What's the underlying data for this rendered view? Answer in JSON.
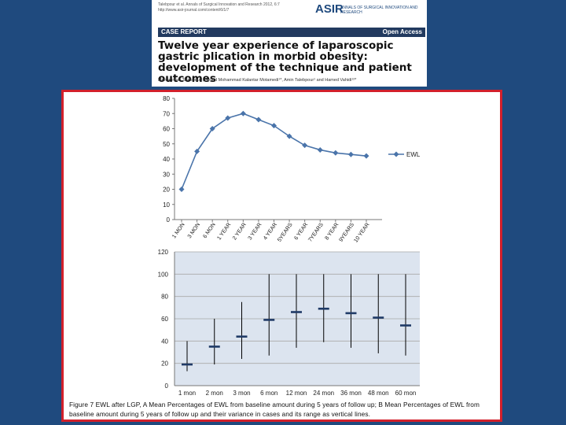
{
  "paper": {
    "citation": "Talebpour et al. Annals of Surgical Innovation and Research 2012, 6:7",
    "citation_url": "http://www.asir-journal.com/content/6/1/7",
    "logo_mark": "ASIR",
    "logo_text": "ANNALS OF SURGICAL INNOVATION AND RESEARCH",
    "banner_left": "CASE REPORT",
    "banner_right": "Open Access",
    "title": "Twelve year experience of laparoscopic gastric plication in morbid obesity: development of the technique and patient outcomes",
    "authors": "Mohammad Talebpour¹, Seyed Mohammad Kalantar Motamedi¹*, Amin Talebpour¹ and Hamed Vahidi¹²*"
  },
  "caption": "Figure 7 EWL after LGP, A Mean Percentages of EWL from baseline amount during 5 years of follow up; B Mean Percentages of EWL from baseline amount during 5 years of follow up and their variance in cases and its range as vertical lines.",
  "colors": {
    "line": "#4a74aa",
    "grid": "#a9a9a9",
    "plot_bg": "#dce4ef",
    "range": "#000000",
    "mean": "#1f3a66",
    "frame": "#d2202b"
  },
  "chart_data": [
    {
      "type": "line",
      "categories": [
        "1 MON",
        "3 MON",
        "6 MON",
        "1 YEAR",
        "2 YEAR",
        "3 YEAR",
        "4 YEAR",
        "5YEARS",
        "6 YEAR",
        "7YEARS",
        "8 YEAR",
        "9YEARS",
        "10 YEAR"
      ],
      "series": [
        {
          "name": "EWL",
          "values": [
            20,
            45,
            60,
            67,
            70,
            66,
            62,
            55,
            49,
            46,
            44,
            43,
            42
          ]
        }
      ],
      "y_ticks": [
        "0",
        "10",
        "20",
        "30",
        "40",
        "50",
        "60",
        "70",
        "80"
      ],
      "ylim": [
        0,
        80
      ],
      "grid": false,
      "legend": "right"
    },
    {
      "type": "scatter",
      "subtype": "range-with-mean",
      "categories": [
        "1 mon",
        "2 mon",
        "3 mon",
        "6 mon",
        "12 mon",
        "24 mon",
        "36 mon",
        "48 mon",
        "60 mon"
      ],
      "mean": [
        19,
        35,
        44,
        59,
        66,
        69,
        65,
        61,
        54
      ],
      "low": [
        13,
        19,
        24,
        27,
        34,
        39,
        34,
        29,
        27
      ],
      "high": [
        40,
        60,
        75,
        100,
        100,
        100,
        100,
        100,
        100
      ],
      "y_ticks": [
        "0",
        "20",
        "40",
        "60",
        "80",
        "100",
        "120"
      ],
      "ylim": [
        0,
        120
      ],
      "grid": true
    }
  ]
}
